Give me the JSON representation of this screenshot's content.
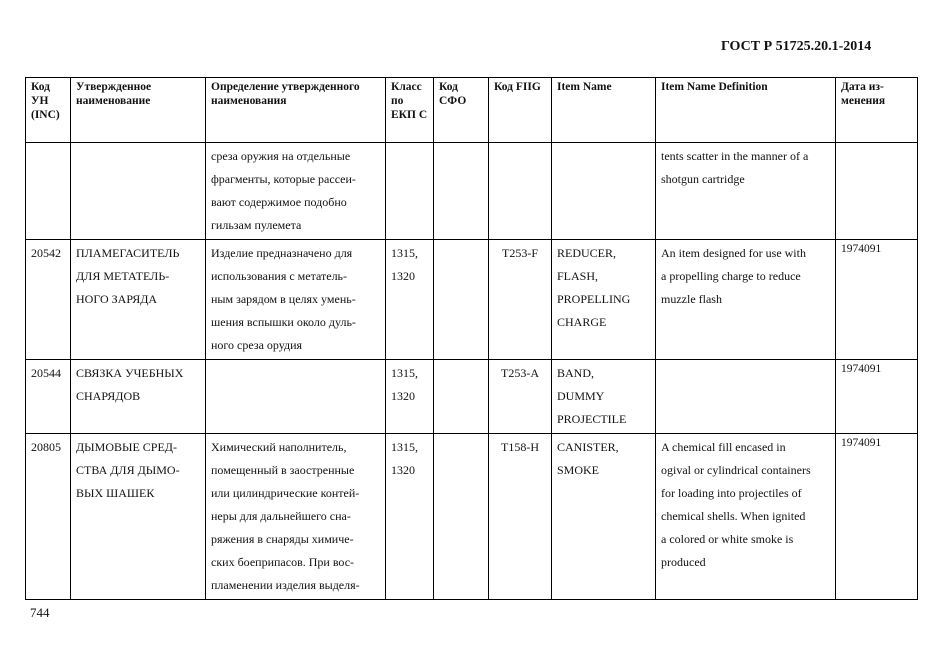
{
  "header": "ГОСТ Р 51725.20.1-2014",
  "page_number": "744",
  "columns": [
    "Код УН (INC)",
    "Утвержденное наименование",
    "Определение утвержденного наименования",
    "Класс по ЕКП С",
    "Код СФО",
    "Код FIIG",
    "Item Name",
    "Item Name Definition",
    "Дата из-менения"
  ],
  "rows": [
    {
      "inc": "",
      "name": [],
      "definition": [
        "среза оружия на отдельные",
        "фрагменты, которые рассеи-",
        "вают содержимое подобно",
        "гильзам пулемета"
      ],
      "class": [],
      "sfo": "",
      "fiig": "",
      "item_name": [],
      "item_def": [
        "tents scatter in the manner of a",
        "shotgun cartridge"
      ],
      "date": ""
    },
    {
      "inc": "20542",
      "name": [
        "ПЛАМЕГАСИТЕЛЬ",
        "ДЛЯ МЕТАТЕЛЬ-",
        "НОГО ЗАРЯДА"
      ],
      "definition": [
        "Изделие предназначено для",
        "использования с метатель-",
        "ным зарядом в целях умень-",
        "шения вспышки около дуль-",
        "ного среза орудия"
      ],
      "class": [
        "1315,",
        "1320"
      ],
      "sfo": "",
      "fiig": "T253-F",
      "item_name": [
        "REDUCER,",
        "FLASH,",
        "PROPELLING",
        "CHARGE"
      ],
      "item_def": [
        "An item designed for use with",
        "a propelling charge to reduce",
        "muzzle flash"
      ],
      "date": "1974091"
    },
    {
      "inc": "20544",
      "name": [
        "СВЯЗКА УЧЕБНЫХ",
        "СНАРЯДОВ"
      ],
      "definition": [],
      "class": [
        "1315,",
        "1320"
      ],
      "sfo": "",
      "fiig": "T253-A",
      "item_name": [
        "BAND,",
        "DUMMY",
        "PROJECTILE"
      ],
      "item_def": [],
      "date": "1974091"
    },
    {
      "inc": "20805",
      "name": [
        "ДЫМОВЫЕ СРЕД-",
        "СТВА ДЛЯ ДЫМО-",
        "ВЫХ ШАШЕК"
      ],
      "definition": [
        "Химический наполнитель,",
        "помещенный в заостренные",
        "или цилиндрические контей-",
        "неры для дальнейшего сна-",
        "ряжения в снаряды химиче-",
        "ских боеприпасов. При вос-",
        "пламенении изделия выделя-"
      ],
      "class": [
        "1315,",
        "1320"
      ],
      "sfo": "",
      "fiig": "T158-H",
      "item_name": [
        "CANISTER,",
        "SMOKE"
      ],
      "item_def": [
        "A chemical fill encased in",
        "ogival or cylindrical containers",
        "for loading into projectiles of",
        "chemical shells. When ignited",
        "a colored or white smoke is",
        "produced"
      ],
      "date": "1974091"
    }
  ]
}
